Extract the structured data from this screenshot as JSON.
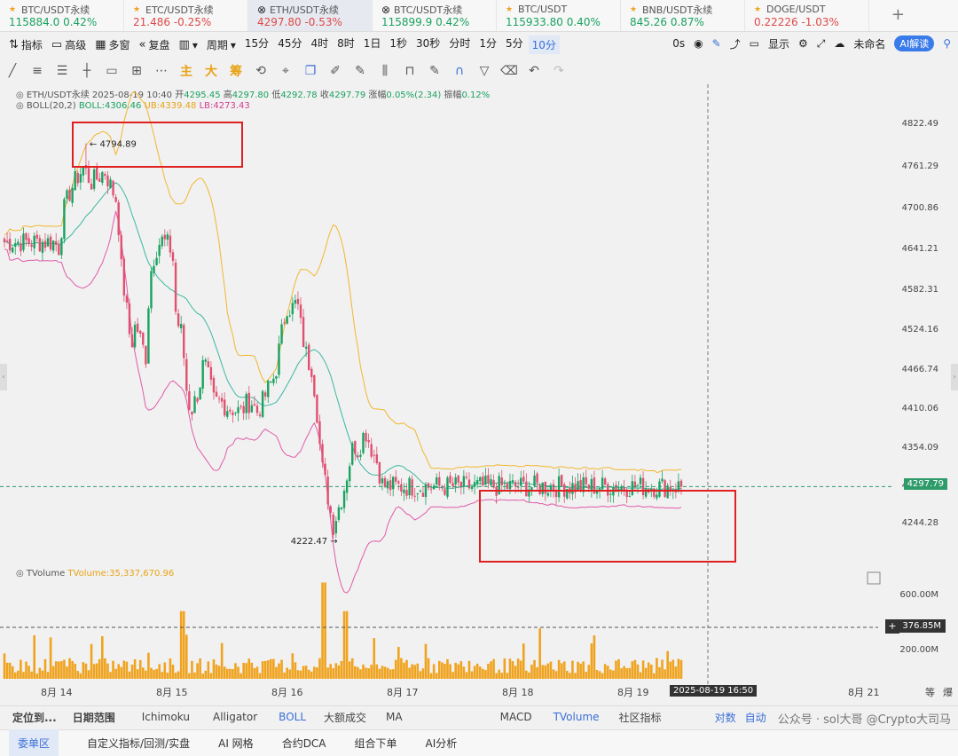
{
  "tickers": [
    {
      "name": "BTC/USDT永续",
      "price": "115884.0",
      "change": "0.42%",
      "dir": "up",
      "icon": "star-icon"
    },
    {
      "name": "ETC/USDT永续",
      "price": "21.486",
      "change": "-0.25%",
      "dir": "dn",
      "icon": "star-icon"
    },
    {
      "name": "ETH/USDT永续",
      "price": "4297.80",
      "change": "-0.53%",
      "dir": "dn",
      "icon": "close-icon",
      "active": true
    },
    {
      "name": "BTC/USDT永续",
      "price": "115899.9",
      "change": "0.42%",
      "dir": "up",
      "icon": "close-icon"
    },
    {
      "name": "BTC/USDT",
      "price": "115933.80",
      "change": "0.40%",
      "dir": "up",
      "icon": "star-icon"
    },
    {
      "name": "BNB/USDT永续",
      "price": "845.26",
      "change": "0.87%",
      "dir": "up",
      "icon": "star-icon"
    },
    {
      "name": "DOGE/USDT",
      "price": "0.22226",
      "change": "-1.03%",
      "dir": "dn",
      "icon": "star-icon"
    }
  ],
  "toolbar": {
    "indicators": "指标",
    "advanced": "高级",
    "multi_window": "多窗",
    "replay": "复盘",
    "period": "周期",
    "intervals": [
      "15分",
      "45分",
      "4时",
      "8时",
      "1日",
      "1秒",
      "30秒",
      "分时",
      "1分",
      "5分",
      "10分"
    ],
    "selected_interval": "10分",
    "countdown": "0s",
    "display": "显示",
    "unnamed": "未命名",
    "ai": "AI解读"
  },
  "tools": {
    "main": "主",
    "big": "大",
    "chip": "筹"
  },
  "info": {
    "symbol": "ETH/USDT永续",
    "datetime": "2025-08-19 10:40",
    "open_label": "开",
    "open": "4295.45",
    "high_label": "高",
    "high": "4297.80",
    "low_label": "低",
    "low": "4292.78",
    "close_label": "收",
    "close": "4297.79",
    "chg_label": "涨幅",
    "chg": "0.05%(2.34)",
    "amp_label": "振幅",
    "amp": "0.12%"
  },
  "boll": {
    "name": "BOLL(20,2)",
    "mid": "BOLL:4306.46",
    "ub": "UB:4339.48",
    "lb": "LB:4273.43"
  },
  "volume": {
    "name": "TVolume",
    "value": "TVolume:35,337,670.96"
  },
  "chart_data": {
    "type": "candlestick",
    "title": "ETH/USDT永续",
    "interval": "10分",
    "x_labels": [
      "8月 14",
      "8月 15",
      "8月 16",
      "8月 17",
      "8月 18",
      "8月 19",
      "8月 21"
    ],
    "price_labels": [
      "4822.49",
      "4761.29",
      "4700.86",
      "4641.21",
      "4582.31",
      "4524.16",
      "4466.74",
      "4410.06",
      "4354.09",
      "4297.79",
      "4244.28"
    ],
    "volume_labels": [
      "600.00M",
      "376.85M",
      "200.00M"
    ],
    "ylim": [
      4205,
      4840
    ],
    "vol_max": 750,
    "close_anchors": [
      [
        0,
        4652
      ],
      [
        0.03,
        4640
      ],
      [
        0.08,
        4700
      ],
      [
        0.13,
        4725
      ],
      [
        0.19,
        4745
      ],
      [
        0.25,
        4760
      ],
      [
        0.31,
        4738
      ],
      [
        0.37,
        4745
      ],
      [
        0.43,
        4755
      ],
      [
        0.49,
        4730
      ],
      [
        0.54,
        4710
      ],
      [
        0.57,
        4620
      ],
      [
        0.62,
        4555
      ],
      [
        0.66,
        4500
      ],
      [
        0.7,
        4535
      ],
      [
        0.75,
        4505
      ],
      [
        0.79,
        4485
      ],
      [
        0.82,
        4600
      ],
      [
        0.87,
        4640
      ],
      [
        0.92,
        4655
      ],
      [
        0.98,
        4648
      ],
      [
        1.02,
        4636
      ],
      [
        1.05,
        4540
      ],
      [
        1.1,
        4520
      ],
      [
        1.15,
        4420
      ],
      [
        1.19,
        4410
      ],
      [
        1.25,
        4440
      ],
      [
        1.29,
        4480
      ],
      [
        1.33,
        4455
      ],
      [
        1.38,
        4420
      ],
      [
        1.44,
        4420
      ],
      [
        1.5,
        4412
      ],
      [
        1.55,
        4410
      ],
      [
        1.61,
        4405
      ],
      [
        1.67,
        4420
      ],
      [
        1.71,
        4420
      ],
      [
        1.75,
        4405
      ],
      [
        1.8,
        4420
      ],
      [
        1.85,
        4440
      ],
      [
        1.91,
        4460
      ],
      [
        1.96,
        4515
      ],
      [
        2.01,
        4560
      ],
      [
        2.05,
        4555
      ],
      [
        2.1,
        4565
      ],
      [
        2.14,
        4520
      ],
      [
        2.19,
        4480
      ],
      [
        2.23,
        4470
      ],
      [
        2.27,
        4410
      ],
      [
        2.31,
        4330
      ],
      [
        2.36,
        4290
      ],
      [
        2.41,
        4240
      ],
      [
        2.45,
        4262
      ],
      [
        2.5,
        4290
      ],
      [
        2.55,
        4330
      ],
      [
        2.59,
        4360
      ],
      [
        2.63,
        4350
      ],
      [
        2.69,
        4380
      ],
      [
        2.74,
        4355
      ],
      [
        2.79,
        4335
      ],
      [
        2.84,
        4300
      ],
      [
        2.88,
        4298
      ]
    ],
    "high_mark": "4794.89",
    "low_mark": "4222.47",
    "crosshair_date": "2025-08-19 16:50",
    "current_price": "4297.79",
    "current_volume": "376.85M"
  },
  "bottom_tabs1": [
    "定位到...",
    "日期范围",
    "Ichimoku",
    "Alligator",
    "BOLL",
    "大额成交",
    "MA",
    "MACD",
    "TVolume",
    "社区指标",
    "对数",
    "自动"
  ],
  "bottom_tabs2": [
    "委单区",
    "自定义指标/回测/实盘",
    "AI 网格",
    "合约DCA",
    "组合下单",
    "AI分析"
  ],
  "watermark": "公众号 · sol大哥 @Crypto大司马",
  "corner_labels": [
    "等",
    "爆"
  ]
}
